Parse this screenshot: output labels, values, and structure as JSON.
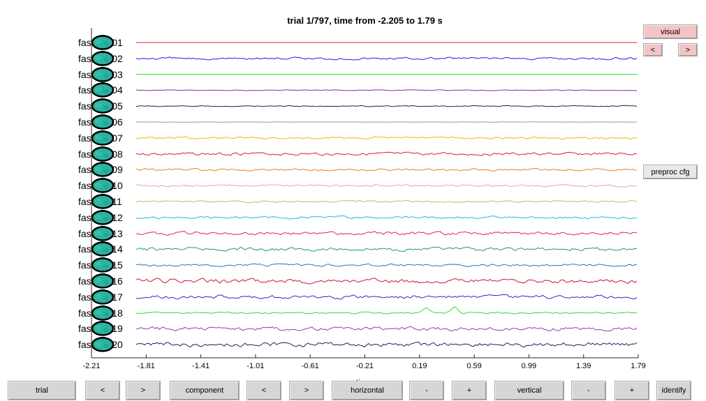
{
  "title": "trial 1/797, time from -2.205 to 1.79 s",
  "x_label": "time",
  "right_panel": {
    "visual_label": "visual",
    "prev_label": "<",
    "next_label": ">",
    "preproc_label": "preproc cfg"
  },
  "bottom_bar": {
    "trial_label": "trial",
    "trial_prev": "<",
    "trial_next": ">",
    "component_label": "component",
    "component_prev": "<",
    "component_next": ">",
    "horizontal_label": "horizontal",
    "horizontal_minus": "-",
    "horizontal_plus": "+",
    "vertical_label": "vertical",
    "vertical_minus": "-",
    "vertical_plus": "+",
    "identify_label": "identify"
  },
  "chart_data": {
    "type": "line",
    "title": "trial 1/797, time from -2.205 to 1.79 s",
    "xlabel": "time",
    "xlim": [
      -2.21,
      1.79
    ],
    "x_ticks": [
      "-2.21",
      "-1.81",
      "-1.41",
      "-1.01",
      "-0.61",
      "-0.21",
      "0.19",
      "0.59",
      "0.99",
      "1.39",
      "1.79"
    ],
    "series": [
      {
        "name": "fastica001",
        "color": "#e8202a",
        "noise": 0.0
      },
      {
        "name": "fastica002",
        "color": "#1a1aff",
        "noise": 1.2
      },
      {
        "name": "fastica003",
        "color": "#22d822",
        "noise": 0.0
      },
      {
        "name": "fastica004",
        "color": "#8a2ba8",
        "noise": 0.4
      },
      {
        "name": "fastica005",
        "color": "#0a2a55",
        "noise": 0.5
      },
      {
        "name": "fastica006",
        "color": "#9a9a9a",
        "noise": 0.15
      },
      {
        "name": "fastica007",
        "color": "#f2b705",
        "noise": 1.1
      },
      {
        "name": "fastica008",
        "color": "#d91e2a",
        "noise": 1.4
      },
      {
        "name": "fastica009",
        "color": "#e8801a",
        "noise": 1.1
      },
      {
        "name": "fastica010",
        "color": "#f0a0a0",
        "noise": 1.0
      },
      {
        "name": "fastica011",
        "color": "#9ad35a",
        "noise": 1.0
      },
      {
        "name": "fastica012",
        "color": "#22b4e6",
        "noise": 1.2
      },
      {
        "name": "fastica013",
        "color": "#e6186e",
        "noise": 1.6
      },
      {
        "name": "fastica014",
        "color": "#16a05a",
        "noise": 1.6
      },
      {
        "name": "fastica015",
        "color": "#1a78c2",
        "noise": 1.2
      },
      {
        "name": "fastica016",
        "color": "#c81828",
        "noise": 2.2
      },
      {
        "name": "fastica017",
        "color": "#2a2ac8",
        "noise": 1.8
      },
      {
        "name": "fastica018",
        "color": "#28e028",
        "noise": 0.8
      },
      {
        "name": "fastica019",
        "color": "#8c3cb4",
        "noise": 1.8
      },
      {
        "name": "fastica020",
        "color": "#142850",
        "noise": 2.2
      }
    ]
  }
}
